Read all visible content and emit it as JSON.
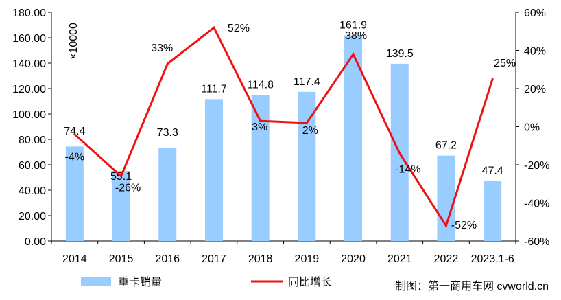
{
  "chart_data": {
    "type": "bar",
    "categories": [
      "2014",
      "2015",
      "2016",
      "2017",
      "2018",
      "2019",
      "2020",
      "2021",
      "2022",
      "2023.1-6"
    ],
    "unit_label": "×10000",
    "series": [
      {
        "name": "重卡销量",
        "type": "bar",
        "axis": "left",
        "values": [
          74.4,
          55.1,
          73.3,
          111.7,
          114.8,
          117.4,
          161.9,
          139.5,
          67.2,
          47.4
        ],
        "labels": [
          "74.4",
          "55.1",
          "73.3",
          "111.7",
          "114.8",
          "117.4",
          "161.9",
          "139.5",
          "67.2",
          "47.4"
        ],
        "color": "#99ccff"
      },
      {
        "name": "同比增长",
        "type": "line",
        "axis": "right",
        "values": [
          -4,
          -26,
          33,
          52,
          3,
          2,
          38,
          -14,
          -52,
          25
        ],
        "labels": [
          "-4%",
          "-26%",
          "33%",
          "52%",
          "3%",
          "2%",
          "38%",
          "-14%",
          "-52%",
          "25%"
        ],
        "color": "#ee1111"
      }
    ],
    "left_axis": {
      "ylim": [
        0,
        180
      ],
      "ticks": [
        "0.00",
        "20.00",
        "40.00",
        "60.00",
        "80.00",
        "100.00",
        "120.00",
        "140.00",
        "160.00",
        "180.00"
      ]
    },
    "right_axis": {
      "ylim": [
        -60,
        60
      ],
      "ticks": [
        "-60%",
        "-40%",
        "-20%",
        "0%",
        "20%",
        "40%",
        "60%"
      ]
    },
    "legend_position": "bottom",
    "grid": false
  },
  "credit": "制图：第一商用车网 cvworld.cn"
}
